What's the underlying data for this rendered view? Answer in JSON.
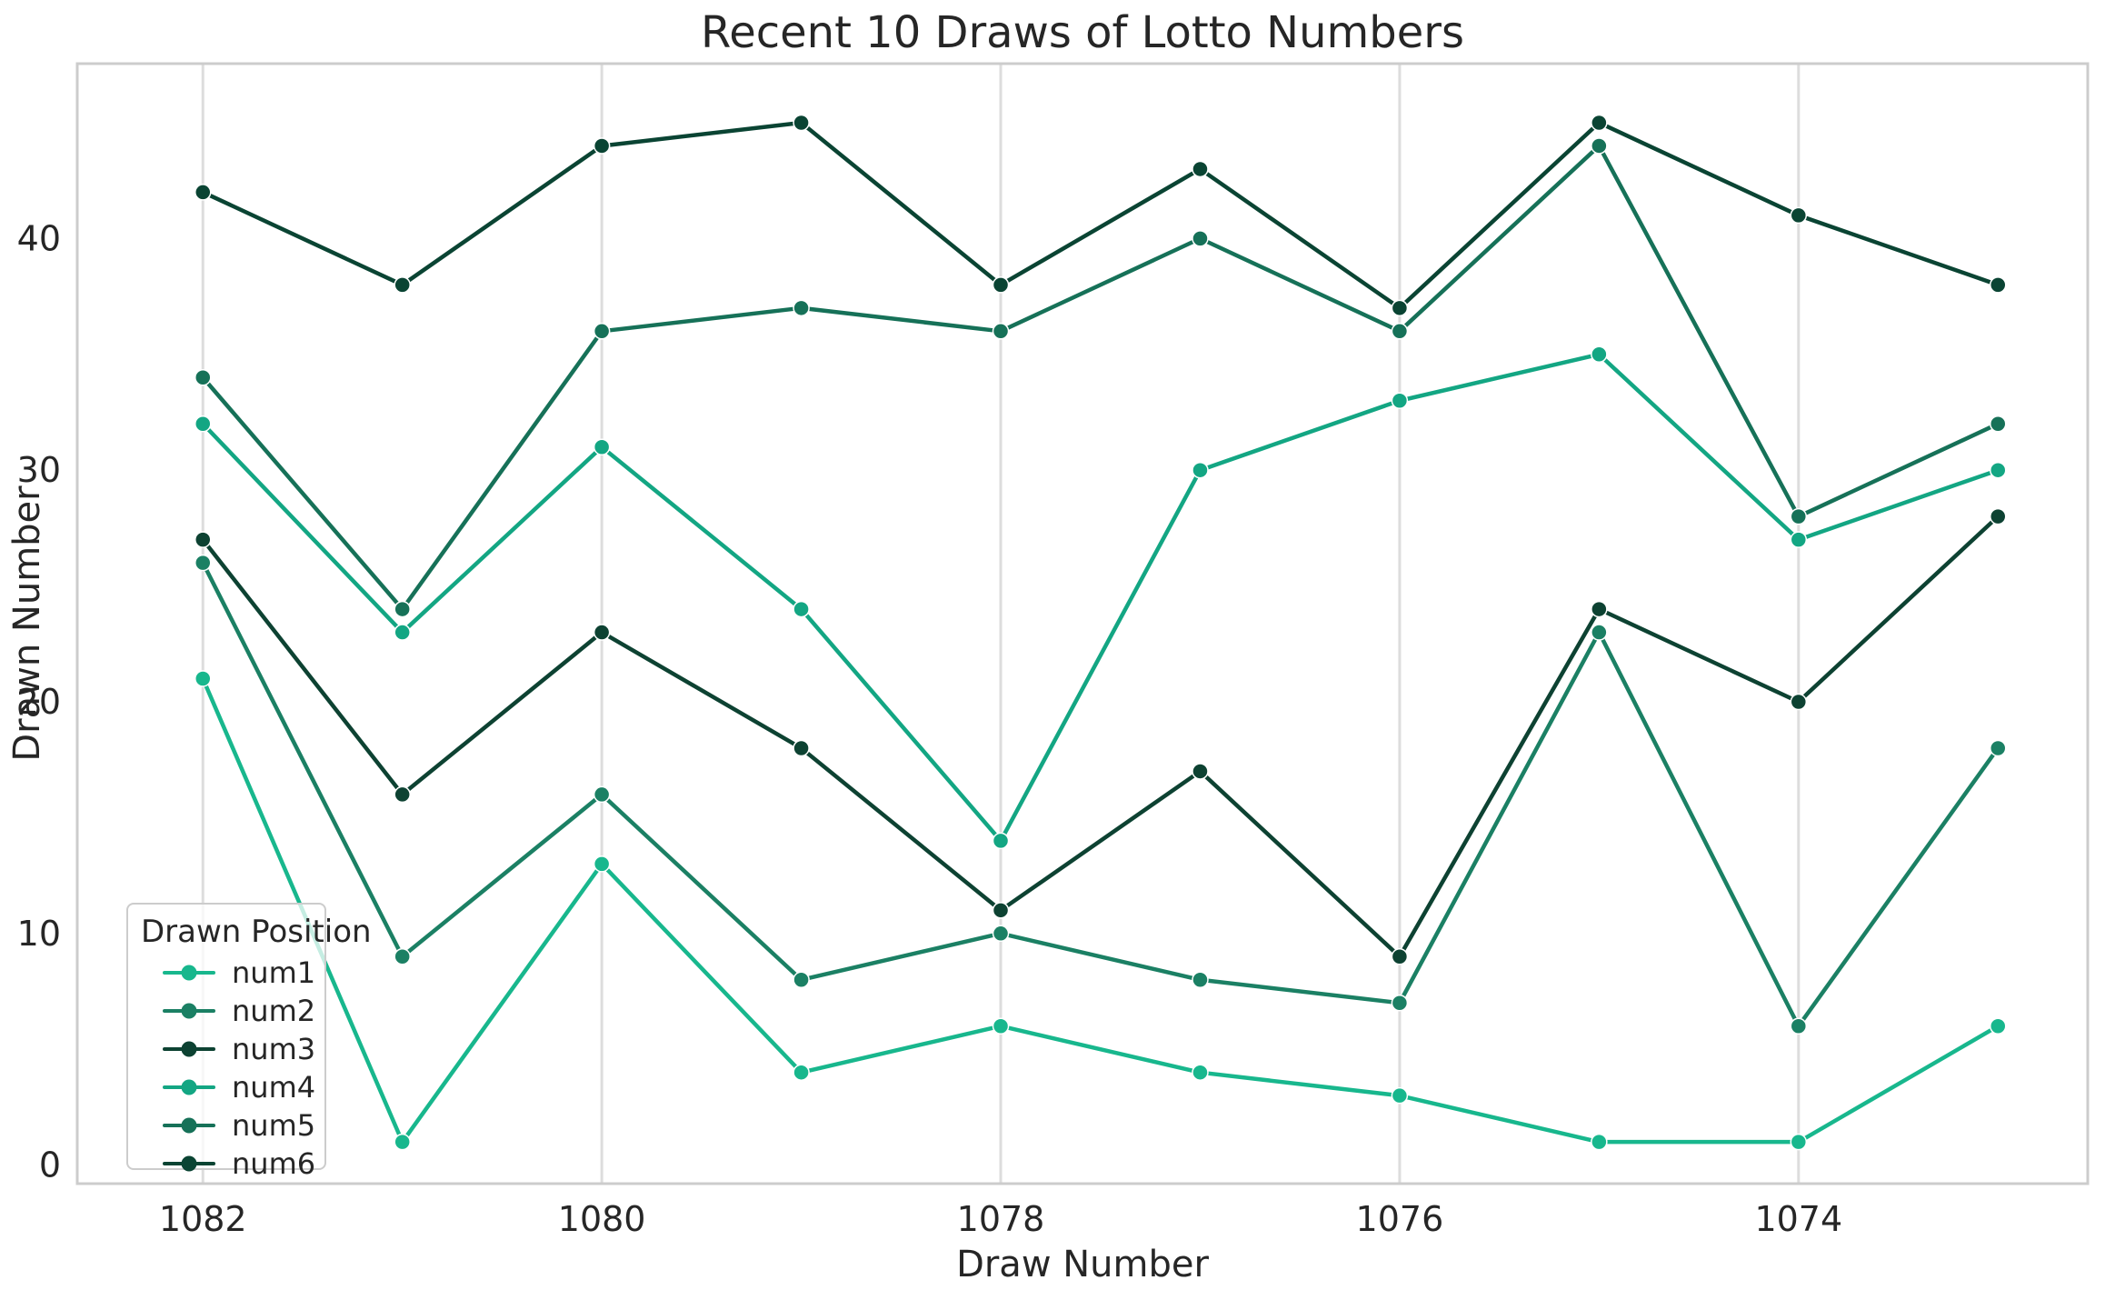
{
  "figure": {
    "title": "Recent 10 Draws of Lotto Numbers",
    "xlabel": "Draw Number",
    "ylabel": "Drawn Number"
  },
  "legend": {
    "title": "Drawn Position",
    "position": "lower-left"
  },
  "chart_data": {
    "type": "line",
    "title": "Recent 10 Draws of Lotto Numbers",
    "xlabel": "Draw Number",
    "ylabel": "Drawn Number",
    "x": [
      1082,
      1081,
      1080,
      1079,
      1078,
      1077,
      1076,
      1075,
      1074,
      1073
    ],
    "x_axis_reversed": true,
    "xlim": [
      1082.63,
      1072.55
    ],
    "ylim": [
      -0.8,
      47.55
    ],
    "xticks": [
      1082,
      1080,
      1078,
      1076,
      1074
    ],
    "yticks": [
      0,
      10,
      20,
      30,
      40
    ],
    "grid": "vertical-only",
    "legend_title": "Drawn Position",
    "legend_position": "lower-left",
    "series": [
      {
        "name": "num1",
        "color": "#18b78d",
        "values": [
          21,
          1,
          13,
          4,
          6,
          4,
          3,
          1,
          1,
          6
        ]
      },
      {
        "name": "num2",
        "color": "#1b8064",
        "values": [
          26,
          9,
          16,
          8,
          10,
          8,
          7,
          23,
          6,
          18
        ]
      },
      {
        "name": "num3",
        "color": "#0d4232",
        "values": [
          27,
          16,
          23,
          18,
          11,
          17,
          9,
          24,
          20,
          28
        ]
      },
      {
        "name": "num4",
        "color": "#13a683",
        "values": [
          32,
          23,
          31,
          24,
          14,
          30,
          33,
          35,
          27,
          30
        ]
      },
      {
        "name": "num5",
        "color": "#167158",
        "values": [
          34,
          24,
          36,
          37,
          36,
          40,
          36,
          44,
          28,
          32
        ]
      },
      {
        "name": "num6",
        "color": "#0a4433",
        "values": [
          42,
          38,
          44,
          45,
          38,
          43,
          37,
          45,
          41,
          38
        ]
      }
    ]
  },
  "colors": {
    "grid": "#dddddd",
    "spine": "#cccccc",
    "text": "#262626",
    "marker_edge": "#ffffff"
  }
}
